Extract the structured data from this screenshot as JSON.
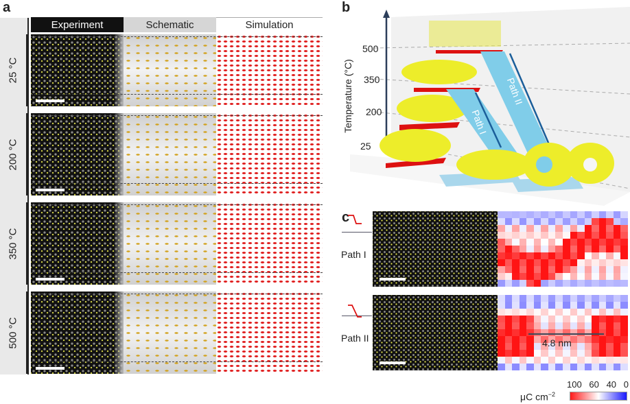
{
  "panel_a": {
    "label": "a",
    "columns": [
      "Experiment",
      "Schematic",
      "Simulation"
    ],
    "rows": [
      "25 °C",
      "200 °C",
      "350 °C",
      "500 °C"
    ]
  },
  "panel_b": {
    "label": "b",
    "axis_label": "Temperature (°C)",
    "ticks": [
      "500",
      "350",
      "200",
      "25"
    ],
    "paths": [
      "Path I",
      "Path II"
    ]
  },
  "panel_c": {
    "label": "c",
    "rows": [
      "Path I",
      "Path II"
    ],
    "annotation": "4.8 nm",
    "colorbar": {
      "unit": "μC cm",
      "unit_sup": "−2",
      "ticks": [
        "100",
        "60",
        "40",
        "0"
      ],
      "colors": [
        "#ff1a1a",
        "#ffffff",
        "#1a1aff"
      ]
    }
  }
}
